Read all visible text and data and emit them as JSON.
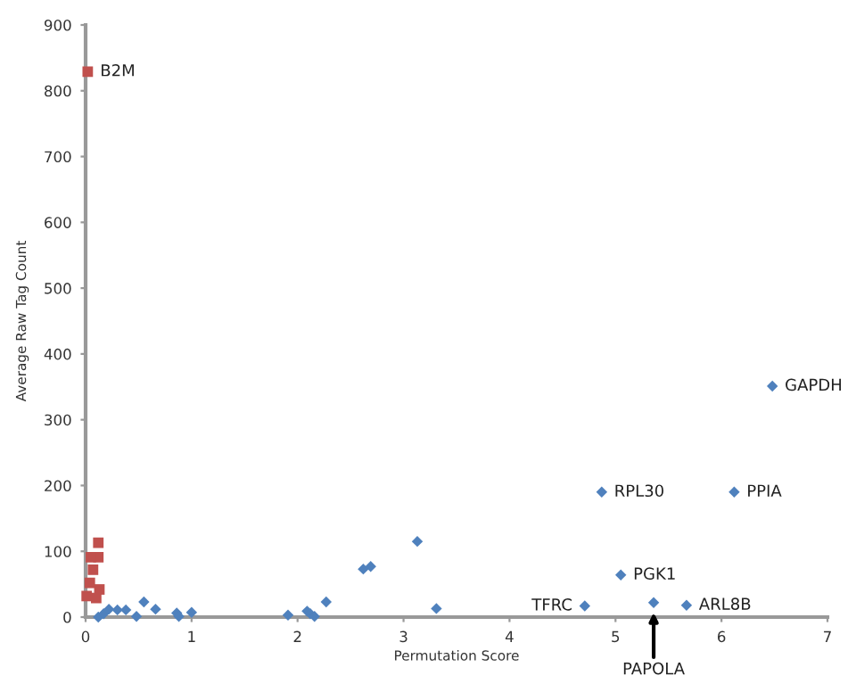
{
  "chart_data": {
    "type": "scatter",
    "xlabel": "Permutation Score",
    "ylabel": "Average Raw Tag Count",
    "xlim": [
      0,
      7
    ],
    "ylim": [
      0,
      900
    ],
    "xticks": [
      0,
      1,
      2,
      3,
      4,
      5,
      6,
      7
    ],
    "yticks": [
      0,
      100,
      200,
      300,
      400,
      500,
      600,
      700,
      800,
      900
    ],
    "grid": false,
    "legend": false,
    "series": [
      {
        "color": "#4f81bd",
        "marker": "diamond",
        "x": [
          0.12,
          0.17,
          0.22,
          0.3,
          0.38,
          0.48,
          0.55,
          0.66,
          0.86,
          0.88,
          1.0,
          1.91,
          2.09,
          2.12,
          2.16,
          2.27,
          2.62,
          2.69,
          3.13,
          3.31,
          4.71,
          4.87,
          5.05,
          5.36,
          5.67,
          6.12,
          6.48
        ],
        "values": [
          0,
          5,
          12,
          11,
          11,
          1,
          23,
          12,
          6,
          1,
          7,
          3,
          9,
          5,
          1,
          23,
          73,
          77,
          115,
          13,
          17,
          190,
          64,
          22,
          18,
          190,
          351
        ]
      },
      {
        "color": "#c0504d",
        "marker": "square",
        "x": [
          0.02,
          0.12,
          0.12,
          0.05,
          0.07,
          0.04,
          0.01,
          0.13,
          0.1
        ],
        "values": [
          829,
          113,
          91,
          91,
          72,
          52,
          32,
          42,
          29
        ]
      }
    ],
    "annotations": [
      {
        "text": "B2M",
        "x": 0.02,
        "y": 829
      },
      {
        "text": "GAPDH",
        "x": 6.48,
        "y": 351
      },
      {
        "text": "RPL30",
        "x": 4.87,
        "y": 190
      },
      {
        "text": "PPIA",
        "x": 6.12,
        "y": 190
      },
      {
        "text": "PGK1",
        "x": 5.05,
        "y": 64
      },
      {
        "text": "TFRC",
        "x": 4.71,
        "y": 17
      },
      {
        "text": "ARL8B",
        "x": 5.67,
        "y": 18
      },
      {
        "text": "PAPOLA",
        "x": 5.36,
        "y": 22
      }
    ]
  }
}
